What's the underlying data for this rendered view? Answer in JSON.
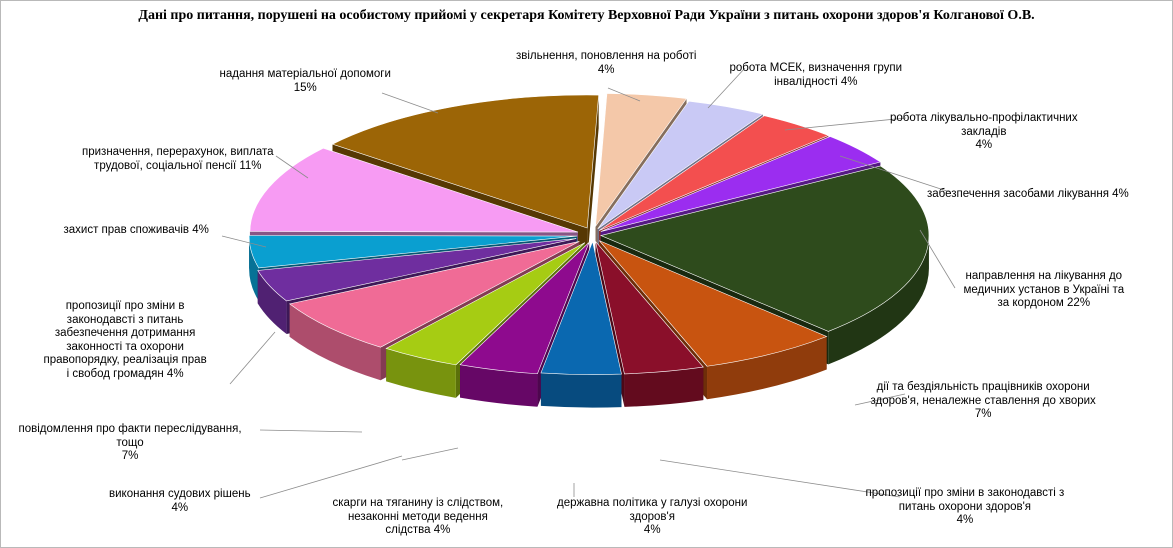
{
  "chart_data": {
    "type": "pie",
    "title": "Дані про питання, порушені на особистому прийомі у секретаря Комітету Верховної Ради України з питань охорони здоров'я Колганової О.В.",
    "slices": [
      {
        "label_lines": [
          "звільнення, поновлення на роботі",
          "4%"
        ],
        "value": 4,
        "color": "#f4c8a9"
      },
      {
        "label_lines": [
          "робота МСЕК, визначення групи",
          "інвалідності 4%"
        ],
        "value": 4,
        "color": "#c9c9f5"
      },
      {
        "label_lines": [
          "робота лікувально-профілактичних",
          "закладів",
          "4%"
        ],
        "value": 4,
        "color": "#f34f4f"
      },
      {
        "label_lines": [
          "забезпечення засобами лікування 4%"
        ],
        "value": 4,
        "color": "#9b2df0"
      },
      {
        "label_lines": [
          "направлення на лікування до",
          "медичних установ в Україні та",
          "за кордоном 22%"
        ],
        "value": 22,
        "color": "#2e4b1c"
      },
      {
        "label_lines": [
          "дії та бездіяльність працівників охорони",
          "здоров'я, неналежне ставлення до хворих",
          "7%"
        ],
        "value": 7,
        "color": "#c85410"
      },
      {
        "label_lines": [
          "пропозиції про зміни в законодавсті з",
          "питань охорони здоров'я",
          "4%"
        ],
        "value": 4,
        "color": "#8a0f2a"
      },
      {
        "label_lines": [
          "державна політика у галузі охорони",
          "здоров'я",
          "4%"
        ],
        "value": 4,
        "color": "#0a68b0"
      },
      {
        "label_lines": [
          "скарги на тяганину із слідством,",
          "незаконні методи ведення",
          "слідства 4%"
        ],
        "value": 4,
        "color": "#8e0a8e"
      },
      {
        "label_lines": [
          "виконання судових рішень",
          "4%"
        ],
        "value": 4,
        "color": "#a6cc13"
      },
      {
        "label_lines": [
          "повідомлення про факти переслідування,",
          "тощо",
          "7%"
        ],
        "value": 7,
        "color": "#f06b96"
      },
      {
        "label_lines": [
          "пропозиції про зміни в",
          "законодавсті з питань",
          "забезпечення дотримання",
          "законності та охорони",
          "правопорядку, реалізація прав",
          "і свобод громадян 4%"
        ],
        "value": 4,
        "color": "#6f2e9f"
      },
      {
        "label_lines": [
          "захист прав споживачів 4%"
        ],
        "value": 4,
        "color": "#0a9fd0"
      },
      {
        "label_lines": [
          "призначення, перерахунок, виплата",
          "трудової, соціальної пенсії 11%"
        ],
        "value": 11,
        "color": "#f79bf3"
      },
      {
        "label_lines": [
          "надання матеріальної допомоги",
          "15%"
        ],
        "value": 15,
        "color": "#9c6506"
      }
    ]
  }
}
